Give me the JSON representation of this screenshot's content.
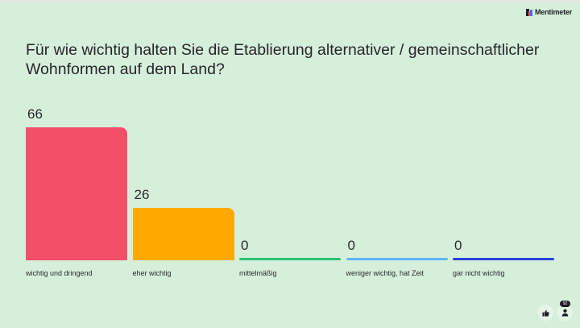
{
  "brand": {
    "name": "Mentimeter"
  },
  "question": "Für wie wichtig halten Sie die Etablierung alternativer / gemeinschaftlicher Wohnformen auf dem Land?",
  "controls": {
    "participants_count": "92",
    "reaction_icon": "thumbs-up-icon",
    "participants_icon": "person-icon"
  },
  "chart_data": {
    "type": "bar",
    "title": "Für wie wichtig halten Sie die Etablierung alternativer / gemeinschaftlicher Wohnformen auf dem Land?",
    "categories": [
      "wichtig und dringend",
      "eher wichtig",
      "mittelmäßig",
      "weniger wichtig, hat Zeit",
      "gar nicht wichtig"
    ],
    "values": [
      66,
      26,
      0,
      0,
      0
    ],
    "colors": [
      "#f25068",
      "#ffa800",
      "#2ec072",
      "#5db7f5",
      "#3040dd"
    ],
    "xlabel": "",
    "ylabel": "",
    "grid": false,
    "legend": "none",
    "value_labels": [
      "66",
      "26",
      "0",
      "0",
      "0"
    ]
  }
}
